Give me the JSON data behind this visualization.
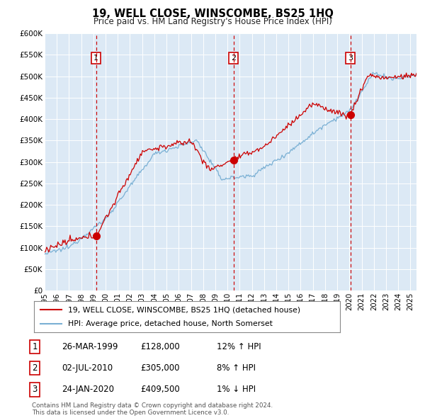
{
  "title": "19, WELL CLOSE, WINSCOMBE, BS25 1HQ",
  "subtitle": "Price paid vs. HM Land Registry's House Price Index (HPI)",
  "bg_color": "#dce9f5",
  "ylim": [
    0,
    600000
  ],
  "yticks": [
    0,
    50000,
    100000,
    150000,
    200000,
    250000,
    300000,
    350000,
    400000,
    450000,
    500000,
    550000,
    600000
  ],
  "ytick_labels": [
    "£0",
    "£50K",
    "£100K",
    "£150K",
    "£200K",
    "£250K",
    "£300K",
    "£350K",
    "£400K",
    "£450K",
    "£500K",
    "£550K",
    "£600K"
  ],
  "sale_dates_num": [
    1999.23,
    2010.5,
    2020.07
  ],
  "sale_prices": [
    128000,
    305000,
    409500
  ],
  "sale_labels": [
    "1",
    "2",
    "3"
  ],
  "vline_color": "#cc0000",
  "sale_color": "#cc0000",
  "hpi_color": "#7ab0d4",
  "legend_entries": [
    "19, WELL CLOSE, WINSCOMBE, BS25 1HQ (detached house)",
    "HPI: Average price, detached house, North Somerset"
  ],
  "table_data": [
    [
      "1",
      "26-MAR-1999",
      "£128,000",
      "12% ↑ HPI"
    ],
    [
      "2",
      "02-JUL-2010",
      "£305,000",
      "8% ↑ HPI"
    ],
    [
      "3",
      "24-JAN-2020",
      "£409,500",
      "1% ↓ HPI"
    ]
  ],
  "footnote": "Contains HM Land Registry data © Crown copyright and database right 2024.\nThis data is licensed under the Open Government Licence v3.0.",
  "start_year": 1995.0,
  "end_year": 2025.5
}
